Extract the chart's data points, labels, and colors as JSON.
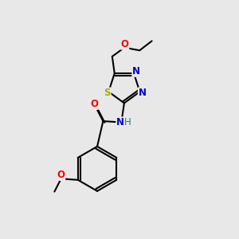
{
  "background_color": "#e8e8e8",
  "bond_color": "#000000",
  "atom_colors": {
    "N": "#0000cc",
    "O": "#ff0000",
    "S": "#aaaa00",
    "H": "#008888",
    "C": "#000000"
  },
  "font_size_atoms": 8.5,
  "fig_size": [
    3.0,
    3.0
  ],
  "dpi": 100
}
